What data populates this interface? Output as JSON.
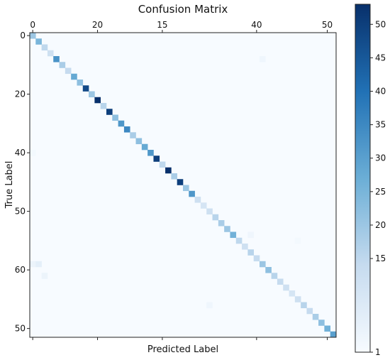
{
  "chart_data": {
    "type": "heatmap",
    "title": "Confusion Matrix",
    "xlabel": "Predicted Label",
    "ylabel": "True Label",
    "size": 52,
    "x_ticks": [
      {
        "index": 0,
        "label": "0"
      },
      {
        "index": 11,
        "label": "20"
      },
      {
        "index": 22,
        "label": "15"
      },
      {
        "index": 38,
        "label": "40"
      },
      {
        "index": 50,
        "label": "50"
      }
    ],
    "y_ticks": [
      {
        "index": 0,
        "label": "0"
      },
      {
        "index": 10,
        "label": "20"
      },
      {
        "index": 20,
        "label": "40"
      },
      {
        "index": 30,
        "label": "50"
      },
      {
        "index": 40,
        "label": "60"
      },
      {
        "index": 50,
        "label": "50"
      }
    ],
    "diagonal": [
      20,
      25,
      15,
      12,
      33,
      18,
      14,
      28,
      22,
      48,
      20,
      53,
      16,
      50,
      22,
      32,
      35,
      18,
      22,
      28,
      32,
      50,
      15,
      53,
      18,
      50,
      20,
      32,
      12,
      10,
      12,
      16,
      18,
      20,
      26,
      15,
      12,
      16,
      14,
      20,
      22,
      16,
      14,
      12,
      10,
      12,
      16,
      14,
      18,
      22,
      26,
      30
    ],
    "off_diagonal": [
      {
        "row": 4,
        "col": 39,
        "value": 3
      },
      {
        "row": 20,
        "col": 0,
        "value": 2
      },
      {
        "row": 34,
        "col": 37,
        "value": 3
      },
      {
        "row": 35,
        "col": 45,
        "value": 2
      },
      {
        "row": 39,
        "col": 0,
        "value": 4
      },
      {
        "row": 39,
        "col": 1,
        "value": 6
      },
      {
        "row": 41,
        "col": 2,
        "value": 4
      },
      {
        "row": 46,
        "col": 30,
        "value": 3
      }
    ],
    "colorbar": {
      "min": 1,
      "max": 53,
      "ticks": [
        1,
        15,
        20,
        25,
        30,
        35,
        40,
        45,
        50
      ]
    },
    "color_low": "#f7fbff",
    "color_high": "#08306b"
  }
}
